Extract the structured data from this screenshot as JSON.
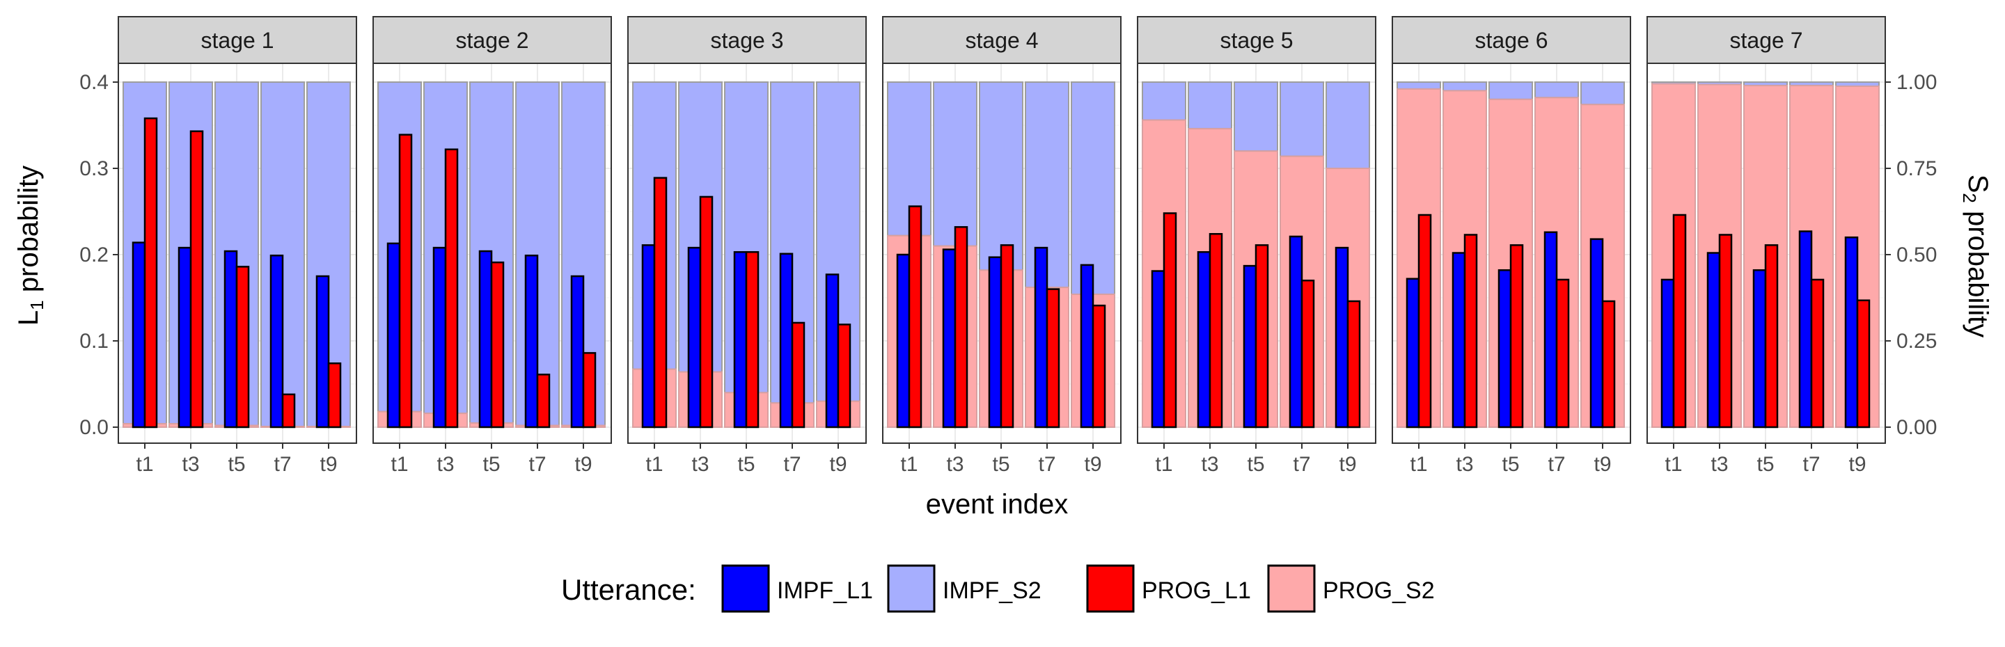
{
  "chart_data": {
    "type": "bar",
    "facets": [
      "stage 1",
      "stage 2",
      "stage 3",
      "stage 4",
      "stage 5",
      "stage 6",
      "stage 7"
    ],
    "categories": [
      "t1",
      "t3",
      "t5",
      "t7",
      "t9"
    ],
    "xlabel": "event index",
    "ylabel_left": "L",
    "ylabel_left_sub": "1",
    "ylabel_left_rest": " probability",
    "ylabel_right": "S",
    "ylabel_right_sub": "2",
    "ylabel_right_rest": " probability",
    "ylim_left": [
      0,
      0.4
    ],
    "ylim_right": [
      0,
      1
    ],
    "left_ticks": [
      "0.0",
      "0.1",
      "0.2",
      "0.3",
      "0.4"
    ],
    "right_ticks": [
      "0.00",
      "0.25",
      "0.50",
      "0.75",
      "1.00"
    ],
    "grid": true,
    "legend_position": "bottom",
    "legend_title": "Utterance:",
    "colors": {
      "IMPF_L1": "#0000ff",
      "IMPF_S2": "#a6aefe",
      "PROG_L1": "#ff0000",
      "PROG_S2": "#fea9aa"
    },
    "series": [
      {
        "name": "IMPF_L1",
        "axis": "left",
        "values": [
          [
            0.214,
            0.208,
            0.204,
            0.199,
            0.175
          ],
          [
            0.213,
            0.208,
            0.204,
            0.199,
            0.175
          ],
          [
            0.211,
            0.208,
            0.203,
            0.201,
            0.177
          ],
          [
            0.2,
            0.206,
            0.197,
            0.208,
            0.188
          ],
          [
            0.181,
            0.203,
            0.187,
            0.221,
            0.208
          ],
          [
            0.172,
            0.202,
            0.182,
            0.226,
            0.218
          ],
          [
            0.171,
            0.202,
            0.182,
            0.227,
            0.22
          ]
        ]
      },
      {
        "name": "PROG_L1",
        "axis": "left",
        "values": [
          [
            0.358,
            0.343,
            0.186,
            0.038,
            0.074
          ],
          [
            0.339,
            0.322,
            0.191,
            0.061,
            0.086
          ],
          [
            0.289,
            0.267,
            0.203,
            0.121,
            0.119
          ],
          [
            0.256,
            0.232,
            0.211,
            0.16,
            0.141
          ],
          [
            0.248,
            0.224,
            0.211,
            0.17,
            0.146
          ],
          [
            0.246,
            0.223,
            0.211,
            0.171,
            0.146
          ],
          [
            0.246,
            0.223,
            0.211,
            0.171,
            0.147
          ]
        ]
      },
      {
        "name": "PROG_S2",
        "axis": "right",
        "values": [
          [
            0.01,
            0.01,
            0.005,
            0.002,
            0.002
          ],
          [
            0.045,
            0.04,
            0.012,
            0.005,
            0.005
          ],
          [
            0.168,
            0.16,
            0.1,
            0.07,
            0.075
          ],
          [
            0.555,
            0.525,
            0.455,
            0.405,
            0.385
          ],
          [
            0.89,
            0.865,
            0.8,
            0.785,
            0.75
          ],
          [
            0.98,
            0.975,
            0.95,
            0.955,
            0.935
          ],
          [
            0.995,
            0.993,
            0.99,
            0.99,
            0.988
          ]
        ]
      },
      {
        "name": "IMPF_S2",
        "axis": "right",
        "note_stack": "top",
        "values": [
          [
            0.99,
            0.99,
            0.995,
            0.998,
            0.998
          ],
          [
            0.955,
            0.96,
            0.988,
            0.995,
            0.995
          ],
          [
            0.832,
            0.84,
            0.9,
            0.93,
            0.925
          ],
          [
            0.445,
            0.475,
            0.545,
            0.595,
            0.615
          ],
          [
            0.11,
            0.135,
            0.2,
            0.215,
            0.25
          ],
          [
            0.02,
            0.025,
            0.05,
            0.045,
            0.065
          ],
          [
            0.005,
            0.007,
            0.01,
            0.01,
            0.012
          ]
        ]
      }
    ]
  }
}
